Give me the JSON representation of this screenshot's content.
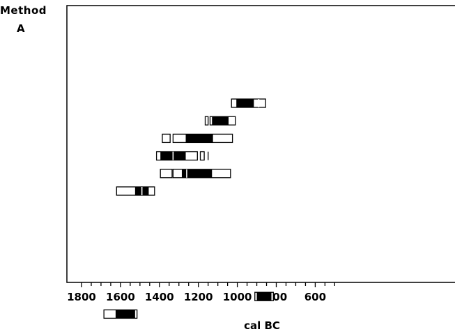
{
  "chart_data": {
    "type": "range",
    "title": "Method",
    "subtitle": "A",
    "xlabel": "cal BC",
    "ylabel": "",
    "xlim": [
      1800,
      500
    ],
    "x_reversed": true,
    "xticks": [
      1800,
      1600,
      1400,
      1200,
      1000,
      800,
      600
    ],
    "xtick_labels": [
      "1800",
      "1600",
      "1400",
      "1200",
      "1000",
      "800",
      "600"
    ],
    "minor_tick_step": 50,
    "rows": 14,
    "series": [
      {
        "row": 1,
        "segments": [
          {
            "from": 1030,
            "to": 855,
            "dark": [
              1005,
              915
            ],
            "dividers": [
              890
            ]
          }
        ]
      },
      {
        "row": 2,
        "segments": [
          {
            "from": 1165,
            "to": 1150,
            "dark": null,
            "dividers": []
          },
          {
            "from": 1140,
            "to": 1010,
            "dark": [
              1130,
              1045
            ],
            "dividers": []
          }
        ]
      },
      {
        "row": 3,
        "segments": [
          {
            "from": 1385,
            "to": 1345,
            "dark": null,
            "dividers": []
          },
          {
            "from": 1330,
            "to": 1025,
            "dark": [
              1265,
              1125
            ],
            "dividers": []
          }
        ]
      },
      {
        "row": 4,
        "segments": [
          {
            "from": 1415,
            "to": 1205,
            "dark": [
              1395,
              1265
            ],
            "dividers": [
              1330
            ]
          },
          {
            "from": 1190,
            "to": 1170,
            "dark": null,
            "dividers": []
          },
          {
            "from": 1150,
            "to": 1150,
            "dark": null,
            "dividers": []
          }
        ]
      },
      {
        "row": 5,
        "segments": [
          {
            "from": 1395,
            "to": 1335,
            "dark": null,
            "dividers": []
          },
          {
            "from": 1330,
            "to": 1035,
            "dark": [
              1285,
              1130
            ],
            "dividers": [
              1260
            ]
          }
        ]
      },
      {
        "row": 6,
        "segments": [
          {
            "from": 1620,
            "to": 1425,
            "dark": [
              1525,
              1455
            ],
            "dividers": [
              1490
            ]
          }
        ]
      },
      {
        "row": 12,
        "segments": [
          {
            "from": 910,
            "to": 815,
            "dark": [
              900,
              825
            ],
            "dividers": []
          }
        ]
      },
      {
        "row": 13,
        "segments": [
          {
            "from": 1685,
            "to": 1515,
            "dark": [
              1625,
              1525
            ],
            "dividers": []
          }
        ]
      }
    ]
  }
}
